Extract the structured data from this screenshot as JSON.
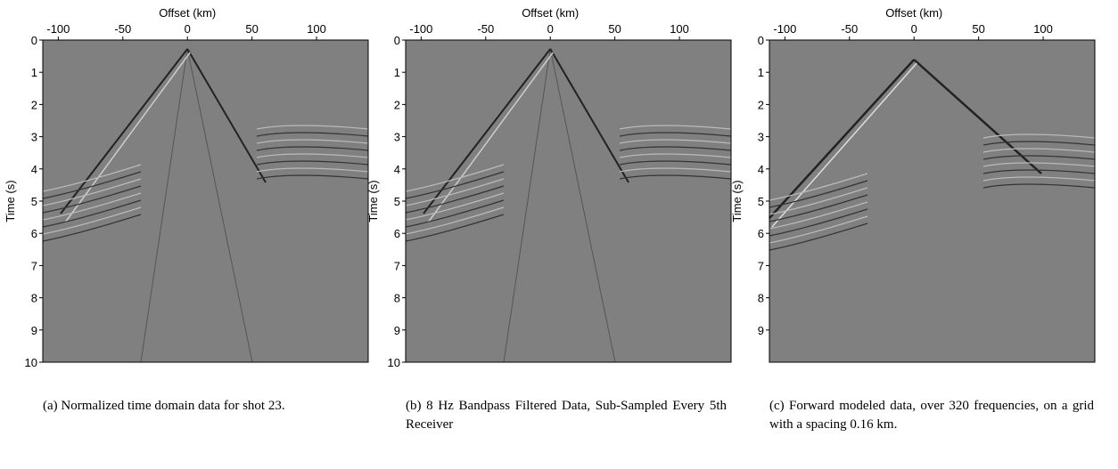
{
  "panels": [
    {
      "xlabel": "Offset (km)",
      "ylabel": "Time (s)",
      "xlim": [
        -112,
        140
      ],
      "ylim": [
        0,
        10
      ],
      "xticks": [
        -100,
        -50,
        0,
        50,
        100
      ],
      "yticks": [
        0,
        1,
        2,
        3,
        4,
        5,
        6,
        7,
        8,
        9,
        10
      ],
      "caption": "(a) Normalized time domain data for shot 23."
    },
    {
      "xlabel": "Offset (km)",
      "ylabel": "Time (s)",
      "xlim": [
        -112,
        140
      ],
      "ylim": [
        0,
        10
      ],
      "xticks": [
        -100,
        -50,
        0,
        50,
        100
      ],
      "yticks": [
        0,
        1,
        2,
        3,
        4,
        5,
        6,
        7,
        8,
        9,
        10
      ],
      "caption": "(b) 8 Hz Bandpass Filtered Data, Sub-Sampled Every 5th Receiver"
    },
    {
      "xlabel": "Offset (km)",
      "ylabel": "Time (s)",
      "xlim": [
        -112,
        140
      ],
      "ylim": [
        0,
        10
      ],
      "xticks": [
        -100,
        -50,
        0,
        50,
        100
      ],
      "yticks": [
        0,
        1,
        2,
        3,
        4,
        5,
        6,
        7,
        8,
        9
      ],
      "caption": "(c) Forward modeled data, over 320 frequencies, on a grid with a spacing 0.16 km."
    }
  ]
}
